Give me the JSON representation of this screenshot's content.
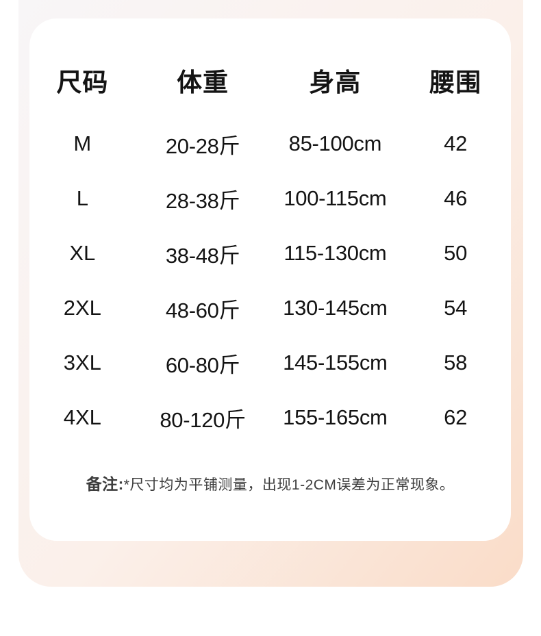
{
  "colors": {
    "page-bg": "#ffffff",
    "card-bg": "#ffffff",
    "gradient-light": "#f8f6f8",
    "gradient-mid": "#fbf0ea",
    "gradient-peach": "#fadcc8",
    "table-text": "#141414",
    "note-text": "#3d3d3d"
  },
  "size_chart": {
    "headers": [
      "尺码",
      "体重",
      "身高",
      "腰围"
    ],
    "rows": [
      [
        "M",
        "20-28斤",
        "85-100cm",
        "42"
      ],
      [
        "L",
        "28-38斤",
        "100-115cm",
        "46"
      ],
      [
        "XL",
        "38-48斤",
        "115-130cm",
        "50"
      ],
      [
        "2XL",
        "48-60斤",
        "130-145cm",
        "54"
      ],
      [
        "3XL",
        "60-80斤",
        "145-155cm",
        "58"
      ],
      [
        "4XL",
        "80-120斤",
        "155-165cm",
        "62"
      ]
    ],
    "note": {
      "label": "备注:",
      "text": "*尺寸均为平铺测量，出现1-2CM误差为正常现象。"
    }
  }
}
